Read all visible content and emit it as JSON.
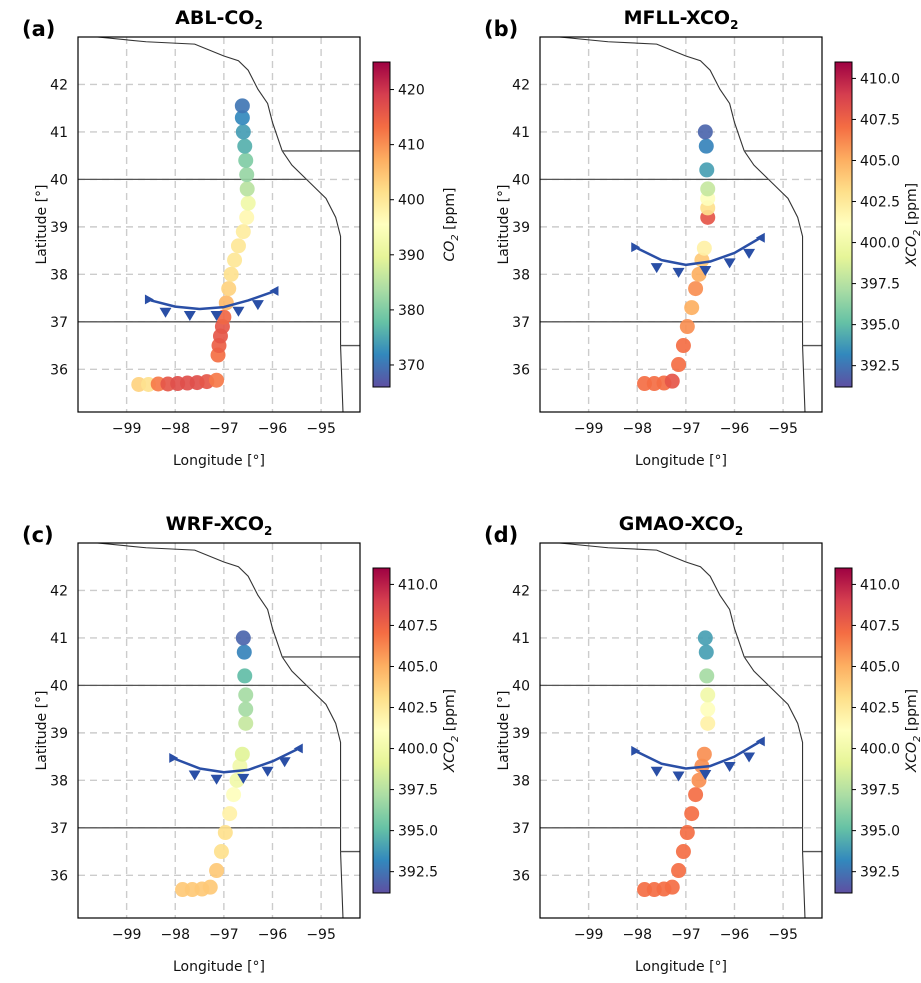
{
  "chart_data": [
    {
      "panel": "(a)",
      "type": "scatter",
      "title": "ABL-CO2",
      "title_main": "ABL-CO",
      "title_sub": "2",
      "xlabel": "Longitude [°]",
      "ylabel": "Latitude [°]",
      "xlim": [
        -100.0,
        -94.2
      ],
      "ylim": [
        35.1,
        43.0
      ],
      "xticks": [
        -99,
        -98,
        -97,
        -96,
        -95
      ],
      "xtick_labels": [
        "−99",
        "−98",
        "−97",
        "−96",
        "−95"
      ],
      "yticks": [
        36,
        37,
        38,
        39,
        40,
        41,
        42
      ],
      "ytick_labels": [
        "36",
        "37",
        "38",
        "39",
        "40",
        "41",
        "42"
      ],
      "colorbar": {
        "label": "CO2 [ppm]",
        "label_main": "CO",
        "label_sub": "2",
        "label_tail": " [ppm]",
        "min": 366,
        "max": 425,
        "ticks": [
          370,
          380,
          390,
          400,
          410,
          420
        ],
        "tick_labels": [
          "370",
          "380",
          "390",
          "400",
          "410",
          "420"
        ]
      },
      "front": {
        "curve": [
          [
            -98.5,
            37.45
          ],
          [
            -98.0,
            37.32
          ],
          [
            -97.5,
            37.27
          ],
          [
            -97.0,
            37.31
          ],
          [
            -96.5,
            37.45
          ],
          [
            -96.0,
            37.63
          ]
        ],
        "triangles": [
          [
            -98.2,
            37.36
          ],
          [
            -97.7,
            37.29
          ],
          [
            -97.15,
            37.29
          ],
          [
            -96.7,
            37.38
          ],
          [
            -96.3,
            37.52
          ]
        ]
      },
      "series": [
        {
          "lon": -98.75,
          "lat": 35.68,
          "value": 403
        },
        {
          "lon": -98.55,
          "lat": 35.68,
          "value": 401
        },
        {
          "lon": -98.35,
          "lat": 35.69,
          "value": 412
        },
        {
          "lon": -98.15,
          "lat": 35.69,
          "value": 416
        },
        {
          "lon": -97.95,
          "lat": 35.7,
          "value": 417
        },
        {
          "lon": -97.75,
          "lat": 35.71,
          "value": 417
        },
        {
          "lon": -97.55,
          "lat": 35.72,
          "value": 417
        },
        {
          "lon": -97.35,
          "lat": 35.74,
          "value": 416
        },
        {
          "lon": -97.15,
          "lat": 35.77,
          "value": 412
        },
        {
          "lon": -97.12,
          "lat": 36.3,
          "value": 413
        },
        {
          "lon": -97.1,
          "lat": 36.5,
          "value": 415
        },
        {
          "lon": -97.07,
          "lat": 36.7,
          "value": 416
        },
        {
          "lon": -97.03,
          "lat": 36.9,
          "value": 416
        },
        {
          "lon": -97.0,
          "lat": 37.1,
          "value": 414
        },
        {
          "lon": -96.95,
          "lat": 37.4,
          "value": 406
        },
        {
          "lon": -96.9,
          "lat": 37.7,
          "value": 403
        },
        {
          "lon": -96.85,
          "lat": 38.0,
          "value": 401
        },
        {
          "lon": -96.78,
          "lat": 38.3,
          "value": 400
        },
        {
          "lon": -96.7,
          "lat": 38.6,
          "value": 400
        },
        {
          "lon": -96.6,
          "lat": 38.9,
          "value": 399
        },
        {
          "lon": -96.53,
          "lat": 39.2,
          "value": 397
        },
        {
          "lon": -96.5,
          "lat": 39.5,
          "value": 392
        },
        {
          "lon": -96.52,
          "lat": 39.8,
          "value": 385
        },
        {
          "lon": -96.53,
          "lat": 40.1,
          "value": 382
        },
        {
          "lon": -96.55,
          "lat": 40.4,
          "value": 380
        },
        {
          "lon": -96.57,
          "lat": 40.7,
          "value": 376
        },
        {
          "lon": -96.6,
          "lat": 41.0,
          "value": 374
        },
        {
          "lon": -96.62,
          "lat": 41.3,
          "value": 372
        },
        {
          "lon": -96.62,
          "lat": 41.55,
          "value": 370
        }
      ]
    },
    {
      "panel": "(b)",
      "type": "scatter",
      "title": "MFLL-XCO2",
      "title_main": "MFLL-XCO",
      "title_sub": "2",
      "xlabel": "Longitude [°]",
      "ylabel": "Latitude [°]",
      "xlim": [
        -100.0,
        -94.2
      ],
      "ylim": [
        35.1,
        43.0
      ],
      "xticks": [
        -99,
        -98,
        -97,
        -96,
        -95
      ],
      "xtick_labels": [
        "−99",
        "−98",
        "−97",
        "−96",
        "−95"
      ],
      "yticks": [
        36,
        37,
        38,
        39,
        40,
        41,
        42
      ],
      "ytick_labels": [
        "36",
        "37",
        "38",
        "39",
        "40",
        "41",
        "42"
      ],
      "colorbar": {
        "label": "XCO2 [ppm]",
        "label_main": "XCO",
        "label_sub": "2",
        "label_tail": " [ppm]",
        "min": 391.2,
        "max": 411.0,
        "ticks": [
          392.5,
          395.0,
          397.5,
          400.0,
          402.5,
          405.0,
          407.5,
          410.0
        ],
        "tick_labels": [
          "392.5",
          "395.0",
          "397.5",
          "400.0",
          "402.5",
          "405.0",
          "407.5",
          "410.0"
        ]
      },
      "front": {
        "curve": [
          [
            -98.0,
            38.55
          ],
          [
            -97.5,
            38.3
          ],
          [
            -97.0,
            38.2
          ],
          [
            -96.5,
            38.27
          ],
          [
            -96.0,
            38.45
          ],
          [
            -95.5,
            38.75
          ]
        ],
        "triangles": [
          [
            -97.6,
            38.3
          ],
          [
            -97.15,
            38.2
          ],
          [
            -96.6,
            38.24
          ],
          [
            -96.1,
            38.4
          ],
          [
            -95.7,
            38.6
          ]
        ]
      },
      "series": [
        {
          "lon": -97.85,
          "lat": 35.7,
          "value": 407
        },
        {
          "lon": -97.65,
          "lat": 35.7,
          "value": 407
        },
        {
          "lon": -97.45,
          "lat": 35.71,
          "value": 407
        },
        {
          "lon": -97.28,
          "lat": 35.75,
          "value": 408
        },
        {
          "lon": -97.15,
          "lat": 36.1,
          "value": 407
        },
        {
          "lon": -97.05,
          "lat": 36.5,
          "value": 407
        },
        {
          "lon": -96.97,
          "lat": 36.9,
          "value": 406
        },
        {
          "lon": -96.88,
          "lat": 37.3,
          "value": 405
        },
        {
          "lon": -96.8,
          "lat": 37.7,
          "value": 406
        },
        {
          "lon": -96.73,
          "lat": 38.0,
          "value": 405
        },
        {
          "lon": -96.67,
          "lat": 38.3,
          "value": 404
        },
        {
          "lon": -96.62,
          "lat": 38.55,
          "value": 402
        },
        {
          "lon": -96.55,
          "lat": 39.2,
          "value": 408
        },
        {
          "lon": -96.55,
          "lat": 39.4,
          "value": 403
        },
        {
          "lon": -96.55,
          "lat": 39.6,
          "value": 401
        },
        {
          "lon": -96.55,
          "lat": 39.8,
          "value": 398
        },
        {
          "lon": -96.57,
          "lat": 40.2,
          "value": 394
        },
        {
          "lon": -96.58,
          "lat": 40.7,
          "value": 393
        },
        {
          "lon": -96.6,
          "lat": 41.0,
          "value": 392
        }
      ]
    },
    {
      "panel": "(c)",
      "type": "scatter",
      "title": "WRF-XCO2",
      "title_main": "WRF-XCO",
      "title_sub": "2",
      "xlabel": "Longitude [°]",
      "ylabel": "Latitude [°]",
      "xlim": [
        -100.0,
        -94.2
      ],
      "ylim": [
        35.1,
        43.0
      ],
      "xticks": [
        -99,
        -98,
        -97,
        -96,
        -95
      ],
      "xtick_labels": [
        "−99",
        "−98",
        "−97",
        "−96",
        "−95"
      ],
      "yticks": [
        36,
        37,
        38,
        39,
        40,
        41,
        42
      ],
      "ytick_labels": [
        "36",
        "37",
        "38",
        "39",
        "40",
        "41",
        "42"
      ],
      "colorbar": {
        "label": "XCO2 [ppm]",
        "label_main": "XCO",
        "label_sub": "2",
        "label_tail": " [ppm]",
        "min": 391.2,
        "max": 411.0,
        "ticks": [
          392.5,
          395.0,
          397.5,
          400.0,
          402.5,
          405.0,
          407.5,
          410.0
        ],
        "tick_labels": [
          "392.5",
          "395.0",
          "397.5",
          "400.0",
          "402.5",
          "405.0",
          "407.5",
          "410.0"
        ]
      },
      "front": {
        "curve": [
          [
            -98.0,
            38.45
          ],
          [
            -97.5,
            38.25
          ],
          [
            -97.0,
            38.17
          ],
          [
            -96.5,
            38.22
          ],
          [
            -96.0,
            38.4
          ],
          [
            -95.5,
            38.65
          ]
        ],
        "triangles": [
          [
            -97.6,
            38.27
          ],
          [
            -97.15,
            38.18
          ],
          [
            -96.6,
            38.2
          ],
          [
            -96.1,
            38.35
          ],
          [
            -95.75,
            38.55
          ]
        ]
      },
      "series": [
        {
          "lon": -97.85,
          "lat": 35.7,
          "value": 404
        },
        {
          "lon": -97.65,
          "lat": 35.7,
          "value": 404
        },
        {
          "lon": -97.45,
          "lat": 35.71,
          "value": 404
        },
        {
          "lon": -97.28,
          "lat": 35.75,
          "value": 404
        },
        {
          "lon": -97.15,
          "lat": 36.1,
          "value": 404
        },
        {
          "lon": -97.05,
          "lat": 36.5,
          "value": 403
        },
        {
          "lon": -96.97,
          "lat": 36.9,
          "value": 403
        },
        {
          "lon": -96.88,
          "lat": 37.3,
          "value": 402
        },
        {
          "lon": -96.8,
          "lat": 37.7,
          "value": 401
        },
        {
          "lon": -96.73,
          "lat": 38.0,
          "value": 400
        },
        {
          "lon": -96.67,
          "lat": 38.3,
          "value": 400
        },
        {
          "lon": -96.62,
          "lat": 38.55,
          "value": 399
        },
        {
          "lon": -96.55,
          "lat": 39.2,
          "value": 398
        },
        {
          "lon": -96.55,
          "lat": 39.5,
          "value": 397
        },
        {
          "lon": -96.55,
          "lat": 39.8,
          "value": 397
        },
        {
          "lon": -96.57,
          "lat": 40.2,
          "value": 395
        },
        {
          "lon": -96.58,
          "lat": 40.7,
          "value": 393
        },
        {
          "lon": -96.6,
          "lat": 41.0,
          "value": 392
        }
      ]
    },
    {
      "panel": "(d)",
      "type": "scatter",
      "title": "GMAO-XCO2",
      "title_main": "GMAO-XCO",
      "title_sub": "2",
      "xlabel": "Longitude [°]",
      "ylabel": "Latitude [°]",
      "xlim": [
        -100.0,
        -94.2
      ],
      "ylim": [
        35.1,
        43.0
      ],
      "xticks": [
        -99,
        -98,
        -97,
        -96,
        -95
      ],
      "xtick_labels": [
        "−99",
        "−98",
        "−97",
        "−96",
        "−95"
      ],
      "yticks": [
        36,
        37,
        38,
        39,
        40,
        41,
        42
      ],
      "ytick_labels": [
        "36",
        "37",
        "38",
        "39",
        "40",
        "41",
        "42"
      ],
      "colorbar": {
        "label": "XCO2 [ppm]",
        "label_main": "XCO",
        "label_sub": "2",
        "label_tail": " [ppm]",
        "min": 391.2,
        "max": 411.0,
        "ticks": [
          392.5,
          395.0,
          397.5,
          400.0,
          402.5,
          405.0,
          407.5,
          410.0
        ],
        "tick_labels": [
          "392.5",
          "395.0",
          "397.5",
          "400.0",
          "402.5",
          "405.0",
          "407.5",
          "410.0"
        ]
      },
      "front": {
        "curve": [
          [
            -98.0,
            38.6
          ],
          [
            -97.5,
            38.35
          ],
          [
            -97.0,
            38.25
          ],
          [
            -96.5,
            38.3
          ],
          [
            -96.0,
            38.5
          ],
          [
            -95.5,
            38.8
          ]
        ],
        "triangles": [
          [
            -97.6,
            38.35
          ],
          [
            -97.15,
            38.25
          ],
          [
            -96.6,
            38.28
          ],
          [
            -96.1,
            38.45
          ],
          [
            -95.7,
            38.65
          ]
        ]
      },
      "series": [
        {
          "lon": -97.85,
          "lat": 35.7,
          "value": 407
        },
        {
          "lon": -97.65,
          "lat": 35.7,
          "value": 407
        },
        {
          "lon": -97.45,
          "lat": 35.71,
          "value": 407
        },
        {
          "lon": -97.28,
          "lat": 35.75,
          "value": 407
        },
        {
          "lon": -97.15,
          "lat": 36.1,
          "value": 407
        },
        {
          "lon": -97.05,
          "lat": 36.5,
          "value": 407
        },
        {
          "lon": -96.97,
          "lat": 36.9,
          "value": 407
        },
        {
          "lon": -96.88,
          "lat": 37.3,
          "value": 407
        },
        {
          "lon": -96.8,
          "lat": 37.7,
          "value": 407
        },
        {
          "lon": -96.73,
          "lat": 38.0,
          "value": 406
        },
        {
          "lon": -96.67,
          "lat": 38.3,
          "value": 406
        },
        {
          "lon": -96.62,
          "lat": 38.55,
          "value": 406
        },
        {
          "lon": -96.55,
          "lat": 39.2,
          "value": 402
        },
        {
          "lon": -96.55,
          "lat": 39.5,
          "value": 401
        },
        {
          "lon": -96.55,
          "lat": 39.8,
          "value": 400
        },
        {
          "lon": -96.57,
          "lat": 40.2,
          "value": 397
        },
        {
          "lon": -96.58,
          "lat": 40.7,
          "value": 394
        },
        {
          "lon": -96.6,
          "lat": 41.0,
          "value": 394
        }
      ]
    }
  ],
  "colormap": "Spectral_r",
  "colormap_stops": [
    "#5e4fa2",
    "#3288bd",
    "#66c2a5",
    "#abdda4",
    "#e6f598",
    "#ffffbf",
    "#fee08b",
    "#fdae61",
    "#f46d43",
    "#d53e4f",
    "#9e0142"
  ],
  "front_color": "#2a4fa6",
  "map_line_color": "#333333",
  "grid_color": "#cccccc"
}
